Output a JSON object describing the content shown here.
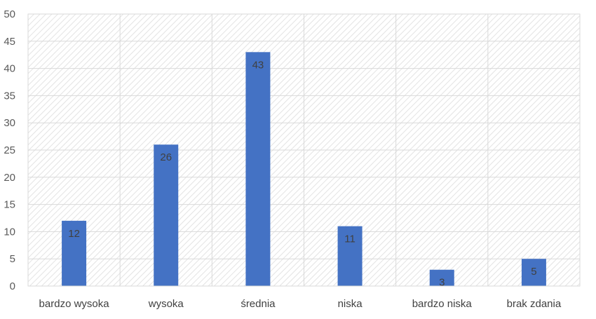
{
  "chart_data": {
    "type": "bar",
    "categories": [
      "bardzo wysoka",
      "wysoka",
      "średnia",
      "niska",
      "bardzo niska",
      "brak zdania"
    ],
    "values": [
      12,
      26,
      43,
      11,
      3,
      5
    ],
    "data_labels": [
      "12",
      "26",
      "43",
      "11",
      "3",
      "5"
    ],
    "ylim": [
      0,
      50
    ],
    "yticks": [
      0,
      5,
      10,
      15,
      20,
      25,
      30,
      35,
      40,
      45,
      50
    ],
    "grid": true,
    "bar_color": "#4472c4",
    "grid_color": "#d9d9d9",
    "plot_background": "diagonal-hatch"
  }
}
